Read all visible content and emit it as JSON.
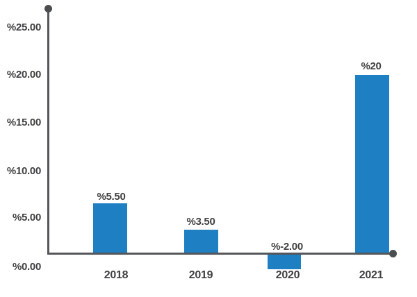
{
  "chart_data": {
    "type": "bar",
    "title": "",
    "xlabel": "",
    "ylabel": "",
    "categories": [
      "2018",
      "2019",
      "2020",
      "2021"
    ],
    "values": [
      5.5,
      3.5,
      -2.0,
      20.0
    ],
    "bar_labels": [
      "%5.50",
      "%3.50",
      "%-2.00",
      "%20"
    ],
    "y_tick_labels": [
      "%25.00",
      "%20.00",
      "%15.00",
      "%10.00",
      "%5.00",
      "%0.00"
    ],
    "y_tick_values": [
      25,
      20,
      15,
      10,
      5,
      0
    ],
    "ylim": [
      -2.5,
      27
    ],
    "grid": false,
    "legend_position": "none",
    "value_format": "percent-sign-prefix",
    "colors": {
      "bar": "#1e7fc2",
      "axis": "#55565a",
      "axis_dot": "#4c4d4f",
      "text": "#414042",
      "background": "#ffffff"
    }
  }
}
